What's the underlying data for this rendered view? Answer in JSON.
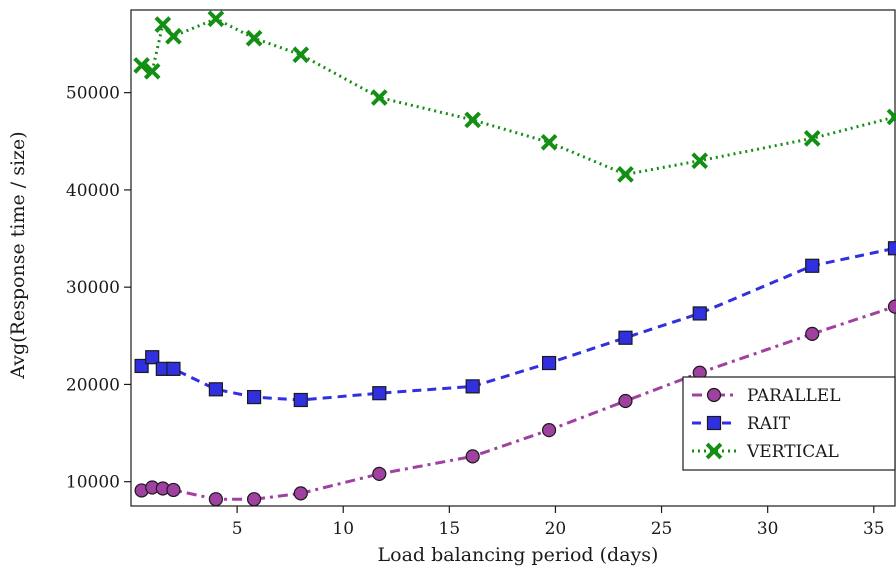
{
  "chart_data": {
    "type": "line",
    "title": "",
    "xlabel": "Load balancing period (days)",
    "ylabel": "Avg(Response time / size)",
    "xlim": [
      0.0,
      36.0
    ],
    "ylim": [
      7500,
      58500
    ],
    "xticks": [
      5,
      10,
      15,
      20,
      25,
      30,
      35
    ],
    "yticks": [
      10000,
      20000,
      30000,
      40000,
      50000
    ],
    "grid": false,
    "legend_position": "bottom-right",
    "series": [
      {
        "name": "PARALLEL",
        "color": "#a040a0",
        "marker": "circle",
        "line_style": "dash-dot",
        "x": [
          0.5,
          1.0,
          1.5,
          2.0,
          4.0,
          5.8,
          8.0,
          11.7,
          16.1,
          19.7,
          23.3,
          26.8,
          32.1,
          36.0
        ],
        "y": [
          9100,
          9400,
          9300,
          9150,
          8200,
          8200,
          8800,
          10800,
          12600,
          15300,
          18300,
          21200,
          25200,
          28000
        ]
      },
      {
        "name": "RAIT",
        "color": "#3030e0",
        "marker": "square",
        "line_style": "dashed",
        "x": [
          0.5,
          1.0,
          1.5,
          2.0,
          4.0,
          5.8,
          8.0,
          11.7,
          16.1,
          19.7,
          23.3,
          26.8,
          32.1,
          36.0
        ],
        "y": [
          21900,
          22800,
          21600,
          21600,
          19500,
          18700,
          18400,
          19100,
          19800,
          22200,
          24800,
          27300,
          32200,
          34000
        ]
      },
      {
        "name": "VERTICAL",
        "color": "#138f13",
        "marker": "x",
        "line_style": "dotted",
        "x": [
          0.5,
          1.0,
          1.5,
          2.0,
          4.0,
          5.8,
          8.0,
          11.7,
          16.1,
          19.7,
          23.3,
          26.8,
          32.1,
          36.0
        ],
        "y": [
          52800,
          52200,
          57000,
          55800,
          57600,
          55600,
          53900,
          49500,
          47200,
          44900,
          41600,
          43000,
          45300,
          47500
        ]
      }
    ]
  }
}
